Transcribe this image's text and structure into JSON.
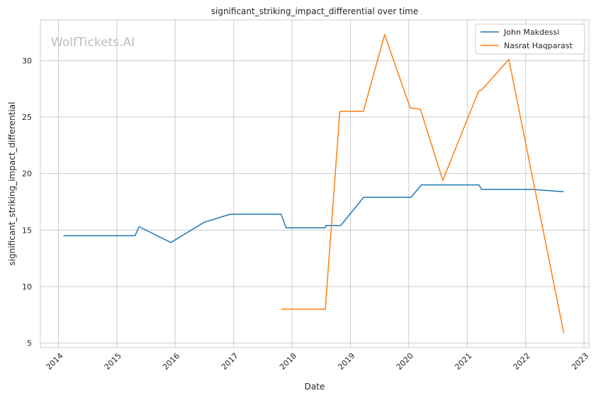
{
  "chart_data": {
    "type": "line",
    "title": "significant_striking_impact_differential over time",
    "xlabel": "Date",
    "ylabel": "significant_striking_impact_differential",
    "watermark": "WolfTickets.AI",
    "x_ticks": [
      "2014",
      "2015",
      "2016",
      "2017",
      "2018",
      "2019",
      "2020",
      "2021",
      "2022",
      "2023"
    ],
    "y_ticks": [
      5,
      10,
      15,
      20,
      25,
      30
    ],
    "xlim": [
      "2013-09-10",
      "2023-02-01"
    ],
    "ylim": [
      4.6,
      33.6
    ],
    "grid": true,
    "legend_position": "top-right",
    "series": [
      {
        "name": "John Makdessi",
        "color": "#1f77b4",
        "points": [
          [
            "2014-02-01",
            14.5
          ],
          [
            "2015-04-25",
            14.5
          ],
          [
            "2015-05-20",
            15.3
          ],
          [
            "2015-12-05",
            13.9
          ],
          [
            "2016-07-01",
            15.7
          ],
          [
            "2016-12-10",
            16.4
          ],
          [
            "2017-10-25",
            16.4
          ],
          [
            "2017-11-25",
            15.2
          ],
          [
            "2018-07-28",
            15.2
          ],
          [
            "2018-08-01",
            15.4
          ],
          [
            "2018-11-01",
            15.4
          ],
          [
            "2019-03-25",
            17.9
          ],
          [
            "2020-01-15",
            17.9
          ],
          [
            "2020-03-20",
            19.0
          ],
          [
            "2021-03-15",
            19.0
          ],
          [
            "2021-04-01",
            18.6
          ],
          [
            "2022-02-10",
            18.6
          ],
          [
            "2022-08-27",
            18.4
          ]
        ]
      },
      {
        "name": "Nasrat Haqparast",
        "color": "#ff7f0e",
        "points": [
          [
            "2017-10-25",
            8.0
          ],
          [
            "2018-07-28",
            8.0
          ],
          [
            "2018-10-27",
            25.5
          ],
          [
            "2019-03-23",
            25.5
          ],
          [
            "2019-08-03",
            32.3
          ],
          [
            "2020-01-10",
            25.8
          ],
          [
            "2020-03-14",
            25.7
          ],
          [
            "2020-08-01",
            19.4
          ],
          [
            "2021-03-13",
            27.3
          ],
          [
            "2021-04-01",
            27.4
          ],
          [
            "2021-09-18",
            30.1
          ],
          [
            "2022-08-27",
            5.9
          ]
        ]
      }
    ]
  }
}
